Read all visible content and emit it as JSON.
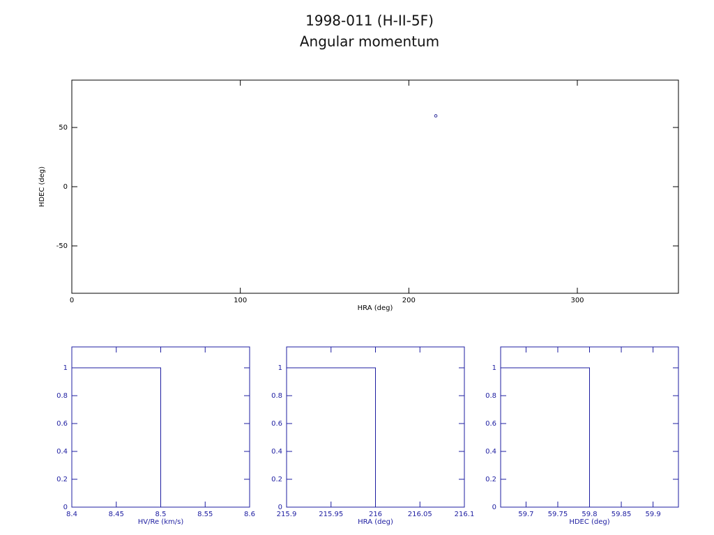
{
  "title": "1998-011 (H-II-5F)",
  "subtitle": "Angular momentum",
  "chart_data": [
    {
      "type": "scatter",
      "xlabel": "HRA (deg)",
      "ylabel": "HDEC (deg)",
      "x": [
        216
      ],
      "values": [
        59.8
      ],
      "color": "#2a2a9a",
      "xlim": [
        0,
        360
      ],
      "xticks": [
        0,
        100,
        200,
        300
      ],
      "ylim": [
        -90,
        90
      ],
      "yticks": [
        -50,
        0,
        50
      ]
    },
    {
      "type": "histogram",
      "xlabel": "HV/Re (km/s)",
      "bins": [
        8.4,
        8.5
      ],
      "counts": [
        1
      ],
      "color": "#1c1ca0",
      "xlim": [
        8.4,
        8.6
      ],
      "xticks": [
        8.4,
        8.45,
        8.5,
        8.55,
        8.6
      ],
      "ylim": [
        0,
        1.15
      ],
      "yticks": [
        0,
        0.2,
        0.4,
        0.6,
        0.8,
        1
      ]
    },
    {
      "type": "histogram",
      "xlabel": "HRA (deg)",
      "bins": [
        215.9,
        216
      ],
      "counts": [
        1
      ],
      "color": "#1c1ca0",
      "xlim": [
        215.9,
        216.1
      ],
      "xticks": [
        215.9,
        215.95,
        216,
        216.05,
        216.1
      ],
      "ylim": [
        0,
        1.15
      ],
      "yticks": [
        0,
        0.2,
        0.4,
        0.6,
        0.8,
        1
      ]
    },
    {
      "type": "histogram",
      "xlabel": "HDEC (deg)",
      "bins": [
        59.66,
        59.8
      ],
      "counts": [
        1
      ],
      "color": "#1c1ca0",
      "xlim": [
        59.66,
        59.94
      ],
      "xticks": [
        59.7,
        59.75,
        59.8,
        59.85,
        59.9
      ],
      "ylim": [
        0,
        1.15
      ],
      "yticks": [
        0,
        0.2,
        0.4,
        0.6,
        0.8,
        1
      ]
    }
  ]
}
